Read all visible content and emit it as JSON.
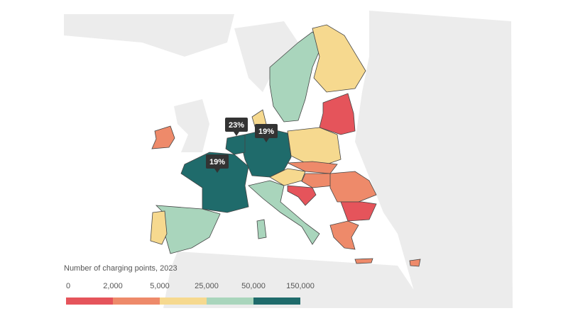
{
  "legend": {
    "title": "Number of charging points, 2023",
    "ticks": [
      {
        "value": 0,
        "label": "0"
      },
      {
        "value": 2000,
        "label": "2,000"
      },
      {
        "value": 5000,
        "label": "5,000"
      },
      {
        "value": 25000,
        "label": "25,000"
      },
      {
        "value": 50000,
        "label": "50,000"
      },
      {
        "value": 150000,
        "label": "150,000"
      }
    ],
    "colors": [
      "#e5545b",
      "#ee8a6a",
      "#f6d98f",
      "#a9d5bc",
      "#1f6b6b"
    ]
  },
  "callouts": [
    {
      "label": "23%"
    },
    {
      "label": "19%"
    },
    {
      "label": "19%"
    }
  ]
}
